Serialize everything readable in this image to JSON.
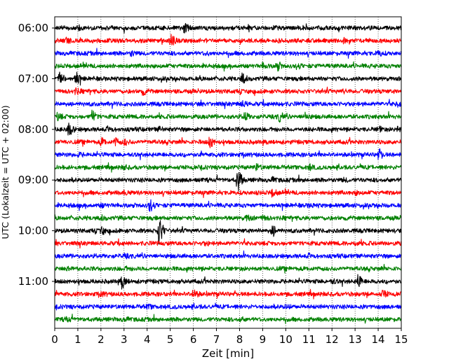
{
  "chart_data": {
    "type": "line",
    "title": "",
    "xlabel": "Zeit  [min]",
    "ylabel": "UTC (Lokalzeit = UTC + 02:00)",
    "xlim": [
      0,
      15
    ],
    "x_ticks": [
      "0",
      "1",
      "2",
      "3",
      "4",
      "5",
      "6",
      "7",
      "8",
      "9",
      "10",
      "11",
      "12",
      "13",
      "14",
      "15"
    ],
    "y_tick_labels": [
      "06:00",
      "07:00",
      "08:00",
      "09:00",
      "10:00",
      "11:00"
    ],
    "grid": "vertical-dotted",
    "trace_colors": [
      "#000000",
      "#ff0000",
      "#0000ff",
      "#008000"
    ],
    "traces": [
      {
        "start": "06:00",
        "events": [
          [
            5.6,
            1.0
          ],
          [
            1.0,
            0.4
          ],
          [
            9.5,
            0.3
          ]
        ]
      },
      {
        "start": "06:15",
        "events": [
          [
            5.0,
            1.6
          ],
          [
            0.5,
            0.5
          ],
          [
            12.5,
            0.3
          ]
        ]
      },
      {
        "start": "06:30",
        "events": [
          [
            3.3,
            0.5
          ],
          [
            6.5,
            0.3
          ],
          [
            14.0,
            0.5
          ]
        ]
      },
      {
        "start": "06:45",
        "events": [
          [
            9.6,
            1.0
          ],
          [
            9.0,
            0.5
          ],
          [
            10.5,
            0.4
          ]
        ]
      },
      {
        "start": "07:00",
        "events": [
          [
            0.2,
            1.5
          ],
          [
            0.9,
            1.5
          ],
          [
            8.1,
            1.2
          ]
        ]
      },
      {
        "start": "07:15",
        "events": [
          [
            0.9,
            0.6
          ],
          [
            3.8,
            0.6
          ],
          [
            12.5,
            0.3
          ]
        ]
      },
      {
        "start": "07:30",
        "events": [
          [
            8.1,
            0.6
          ],
          [
            14.8,
            0.5
          ],
          [
            9.7,
            0.4
          ]
        ]
      },
      {
        "start": "07:45",
        "events": [
          [
            1.6,
            1.4
          ],
          [
            0.1,
            0.8
          ],
          [
            8.2,
            1.0
          ],
          [
            9.7,
            1.0
          ],
          [
            10.8,
            0.8
          ]
        ]
      },
      {
        "start": "08:00",
        "events": [
          [
            0.6,
            1.6
          ],
          [
            2.3,
            0.5
          ],
          [
            4.5,
            0.4
          ],
          [
            14.0,
            0.6
          ],
          [
            14.8,
            0.5
          ]
        ]
      },
      {
        "start": "08:15",
        "events": [
          [
            2.0,
            0.8
          ],
          [
            2.6,
            0.8
          ],
          [
            3.0,
            0.6
          ],
          [
            6.7,
            1.2
          ]
        ]
      },
      {
        "start": "08:30",
        "events": [
          [
            14.0,
            1.2
          ],
          [
            1.0,
            0.3
          ]
        ]
      },
      {
        "start": "08:45",
        "events": [
          [
            8.7,
            0.7
          ],
          [
            11.0,
            0.6
          ],
          [
            3.0,
            0.3
          ]
        ]
      },
      {
        "start": "09:00",
        "events": [
          [
            7.9,
            3.0
          ],
          [
            9.4,
            0.4
          ],
          [
            12.5,
            0.3
          ]
        ]
      },
      {
        "start": "09:15",
        "events": [
          [
            9.4,
            0.9
          ],
          [
            13.0,
            0.3
          ],
          [
            3.0,
            0.3
          ]
        ]
      },
      {
        "start": "09:30",
        "events": [
          [
            4.1,
            1.4
          ],
          [
            2.0,
            0.3
          ],
          [
            11.0,
            0.3
          ]
        ]
      },
      {
        "start": "09:45",
        "events": [
          [
            8.3,
            0.7
          ],
          [
            9.0,
            0.5
          ],
          [
            2.0,
            0.4
          ]
        ]
      },
      {
        "start": "10:00",
        "events": [
          [
            4.5,
            3.5
          ],
          [
            2.0,
            0.8
          ],
          [
            9.4,
            1.3
          ]
        ]
      },
      {
        "start": "10:15",
        "events": [
          [
            6.5,
            0.3
          ],
          [
            13.0,
            0.3
          ]
        ]
      },
      {
        "start": "10:30",
        "events": [
          [
            3.0,
            0.3
          ],
          [
            11.0,
            0.3
          ]
        ]
      },
      {
        "start": "10:45",
        "events": [
          [
            0.5,
            0.5
          ],
          [
            3.0,
            0.3
          ]
        ]
      },
      {
        "start": "11:00",
        "events": [
          [
            2.9,
            1.6
          ],
          [
            13.1,
            1.6
          ],
          [
            12.0,
            0.4
          ]
        ]
      },
      {
        "start": "11:15",
        "events": [
          [
            6.0,
            1.1
          ],
          [
            2.0,
            0.4
          ],
          [
            14.2,
            0.8
          ]
        ]
      },
      {
        "start": "11:30",
        "events": [
          [
            4.0,
            0.4
          ],
          [
            10.0,
            0.3
          ]
        ]
      },
      {
        "start": "11:45",
        "events": [
          [
            0.5,
            0.5
          ],
          [
            3.0,
            0.3
          ],
          [
            8.0,
            0.3
          ]
        ]
      }
    ]
  }
}
